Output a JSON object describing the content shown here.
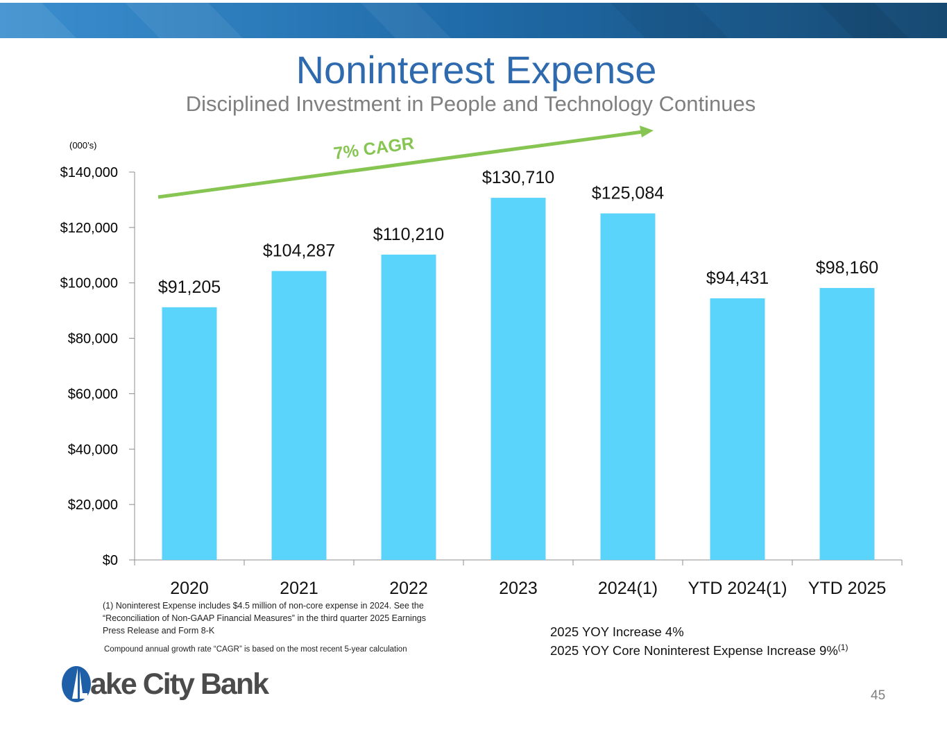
{
  "header": {
    "title": "Noninterest Expense",
    "subtitle": "Disciplined Investment in People and Technology Continues"
  },
  "units_note": "(000’s)",
  "chart_data": {
    "type": "bar",
    "categories": [
      "2020",
      "2021",
      "2022",
      "2023",
      "2024(1)",
      "YTD 2024(1)",
      "YTD 2025"
    ],
    "values": [
      91205,
      104287,
      110210,
      130710,
      125084,
      94431,
      98160
    ],
    "data_labels": [
      "$91,205",
      "$104,287",
      "$110,210",
      "$130,710",
      "$125,084",
      "$94,431",
      "$98,160"
    ],
    "ylim": [
      0,
      140000
    ],
    "yticks": [
      0,
      20000,
      40000,
      60000,
      80000,
      100000,
      120000,
      140000
    ],
    "ytick_labels": [
      "$0",
      "$20,000",
      "$40,000",
      "$60,000",
      "$80,000",
      "$100,000",
      "$120,000",
      "$140,000"
    ],
    "grid": false,
    "bar_color": "#5ad4fb",
    "annotation": {
      "text": "7% CAGR",
      "color": "#86c552"
    }
  },
  "footnotes": {
    "note1": "(1) Noninterest Expense includes $4.5 million of non-core expense in 2024. See the “Reconciliation of Non-GAAP Financial Measures” in the third quarter 2025 Earnings Press Release and Form 8-K",
    "note2": "Compound annual growth rate “CAGR” is based on the most recent 5-year calculation"
  },
  "yoy": {
    "line1": "2025 YOY Increase 4%",
    "line2": "2025 YOY Core Noninterest Expense Increase 9%",
    "line2_sup": "(1)"
  },
  "logo": {
    "text": "ake City Bank",
    "icon": "lake-city-bank-logo-icon"
  },
  "page_number": "45",
  "colors": {
    "title": "#2e6aad",
    "subtitle": "#7f7f7f",
    "banner_dark": "#1a4f7a",
    "banner_light": "#3d8fcb"
  }
}
